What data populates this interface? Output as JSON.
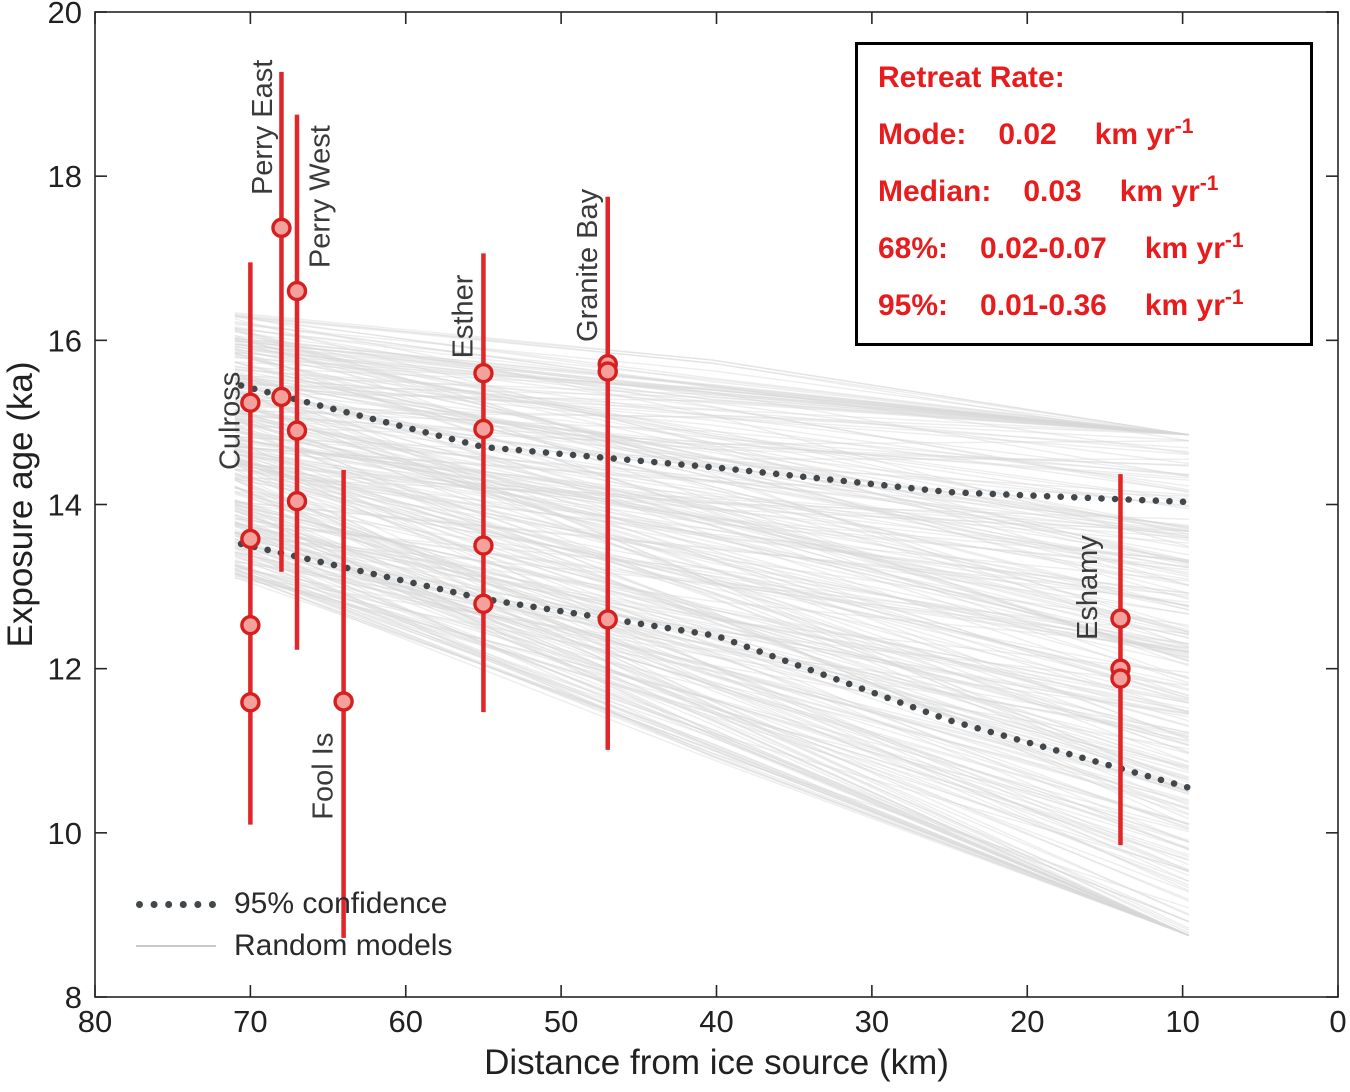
{
  "chart_data": {
    "type": "scatter",
    "title": "",
    "xlabel": "Distance from ice source (km)",
    "ylabel": "Exposure age (ka)",
    "xlim": [
      80,
      0
    ],
    "x_reversed": true,
    "ylim": [
      8,
      20
    ],
    "x_ticks": [
      80,
      70,
      60,
      50,
      40,
      30,
      20,
      10,
      0
    ],
    "y_ticks": [
      8,
      10,
      12,
      14,
      16,
      18,
      20
    ],
    "grid": false,
    "sites": [
      {
        "name": "Culross",
        "km": 70,
        "bar": [
          10.1,
          16.95
        ],
        "ages": [
          15.24,
          13.58,
          12.53,
          11.59
        ],
        "label_anchor": {
          "km": 70.7,
          "ka": 14.42
        }
      },
      {
        "name": "Perry East",
        "km": 68,
        "bar": [
          13.18,
          19.27
        ],
        "ages": [
          17.37,
          15.31
        ],
        "label_anchor": {
          "km": 68.6,
          "ka": 17.77
        }
      },
      {
        "name": "Perry West",
        "km": 67,
        "bar": [
          12.23,
          18.75
        ],
        "ages": [
          16.6,
          14.9,
          14.04
        ],
        "label_anchor": {
          "km": 64.9,
          "ka": 16.88
        }
      },
      {
        "name": "Fool Is",
        "km": 64,
        "bar": [
          8.72,
          14.42
        ],
        "ages": [
          11.6
        ],
        "label_anchor": {
          "km": 64.7,
          "ka": 10.16
        }
      },
      {
        "name": "Esther",
        "km": 55,
        "bar": [
          11.47,
          17.06
        ],
        "ages": [
          15.6,
          14.92,
          13.5,
          12.79
        ],
        "label_anchor": {
          "km": 55.7,
          "ka": 15.78
        }
      },
      {
        "name": "Granite Bay",
        "km": 47,
        "bar": [
          11.01,
          17.75
        ],
        "ages": [
          15.71,
          15.62,
          12.6
        ],
        "label_anchor": {
          "km": 47.7,
          "ka": 15.98
        }
      },
      {
        "name": "Eshamy",
        "km": 14,
        "bar": [
          9.85,
          14.37
        ],
        "ages": [
          12.61,
          12.0,
          11.88
        ],
        "label_anchor": {
          "km": 15.5,
          "ka": 12.35
        }
      }
    ],
    "confidence_upper": [
      [
        70.6,
        15.45
      ],
      [
        55,
        14.7
      ],
      [
        40,
        14.45
      ],
      [
        25,
        14.15
      ],
      [
        9.6,
        14.03
      ]
    ],
    "confidence_lower": [
      [
        70.6,
        13.52
      ],
      [
        55,
        12.85
      ],
      [
        40,
        12.4
      ],
      [
        25,
        11.37
      ],
      [
        9.6,
        10.55
      ]
    ],
    "random_models": {
      "count": 300,
      "x_start": 71.0,
      "x_end": 9.6,
      "y_start_range": [
        13.1,
        16.35
      ],
      "y_end_range": [
        8.75,
        14.85
      ],
      "seed": 42
    },
    "colors": {
      "bar": "#e12528",
      "marker_fill": "#f4a09c",
      "marker_edge": "#d6201f",
      "confidence": "#41474b",
      "models": "#d7d7d7",
      "axis": "#262626",
      "tick_text": "#212121",
      "site_label": "#3a3a3a"
    }
  },
  "legend": {
    "items": [
      {
        "label": "95% confidence",
        "style": "dotted"
      },
      {
        "label": "Random models",
        "style": "line"
      }
    ]
  },
  "retreat_box": {
    "title": "Retreat Rate:",
    "rows": [
      {
        "label": "Mode:",
        "value": "0.02",
        "unit": "km yr",
        "sup": "-1"
      },
      {
        "label": "Median:",
        "value": "0.03",
        "unit": "km yr",
        "sup": "-1"
      },
      {
        "label": "68%:",
        "value": "0.02-0.07",
        "unit": "km yr",
        "sup": "-1"
      },
      {
        "label": "95%:",
        "value": "0.01-0.36",
        "unit": "km yr",
        "sup": "-1"
      }
    ]
  }
}
